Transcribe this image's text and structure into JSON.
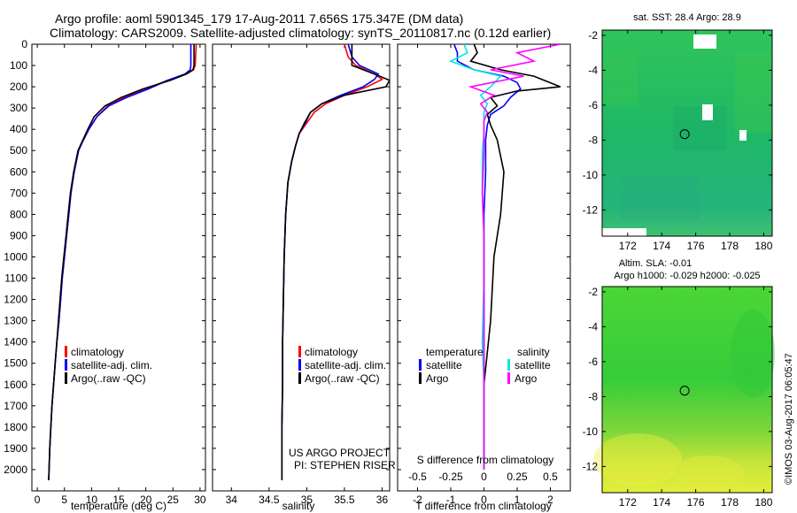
{
  "header": {
    "line1": "Argo profile: aoml 5901345_179 17-Aug-2011 7.656S 175.347E (DM data)",
    "line2": "Climatology: CARS2009. Satellite-adjusted climatology: synTS_20110817.nc (0.12d earlier)"
  },
  "colors": {
    "climatology": "#ff0000",
    "satellite": "#0000ff",
    "argo": "#000000",
    "argo_salinity": "#ff00ff",
    "satellite_salinity": "#00e5e5"
  },
  "chart_data": [
    {
      "type": "line",
      "xlabel": "temperature (deg C)",
      "ylabel": "",
      "xlim": [
        -1,
        31
      ],
      "ylim": [
        2100,
        0
      ],
      "x_ticks": [
        0,
        5,
        10,
        15,
        20,
        25,
        30
      ],
      "y_ticks": [
        0,
        100,
        200,
        300,
        400,
        500,
        600,
        700,
        800,
        900,
        1000,
        1100,
        1200,
        1300,
        1400,
        1500,
        1600,
        1700,
        1800,
        1900,
        2000
      ],
      "legend": [
        "climatology",
        "satellite-adj. clim.",
        "Argo(..raw -QC)"
      ],
      "series": [
        {
          "name": "climatology",
          "color": "#ff0000",
          "x": [
            29.3,
            29.2,
            29.1,
            28.8,
            27.5,
            24,
            20,
            16,
            13,
            11,
            9.5,
            8.5,
            7.6,
            6.8,
            6.2,
            5.8,
            5.4,
            5.0,
            4.6,
            4.3,
            4.0,
            3.6,
            3.3,
            3.0,
            2.7,
            2.5,
            2.3,
            2.1
          ],
          "y": [
            0,
            50,
            100,
            120,
            140,
            170,
            210,
            250,
            290,
            340,
            400,
            450,
            500,
            600,
            700,
            800,
            900,
            1000,
            1100,
            1200,
            1300,
            1400,
            1500,
            1600,
            1700,
            1800,
            1900,
            2050
          ]
        },
        {
          "name": "satellite-adj. clim.",
          "color": "#0000ff",
          "x": [
            28.3,
            28.3,
            28.3,
            28.2,
            27.2,
            24,
            20.5,
            16.5,
            13.2,
            11,
            9.5,
            8.5,
            7.6,
            6.8,
            6.2,
            5.8,
            5.4,
            5.0,
            4.6,
            4.3,
            4.0,
            3.6,
            3.3,
            3.0,
            2.7,
            2.5,
            2.3,
            2.1
          ],
          "y": [
            0,
            50,
            100,
            120,
            140,
            170,
            210,
            250,
            290,
            340,
            400,
            450,
            500,
            600,
            700,
            800,
            900,
            1000,
            1100,
            1200,
            1300,
            1400,
            1500,
            1600,
            1700,
            1800,
            1900,
            2050
          ]
        },
        {
          "name": "Argo(..raw -QC)",
          "color": "#000000",
          "x": [
            28.9,
            28.9,
            28.9,
            28.7,
            27.5,
            24.5,
            19.5,
            15.5,
            12.5,
            10.5,
            9.3,
            8.4,
            7.5,
            6.7,
            6.1,
            5.7,
            5.3,
            4.9,
            4.5,
            4.2,
            3.9,
            3.6,
            3.3,
            3.0,
            2.7,
            2.5,
            2.3,
            2.1
          ],
          "y": [
            0,
            50,
            100,
            120,
            140,
            170,
            210,
            250,
            290,
            340,
            400,
            450,
            500,
            600,
            700,
            800,
            900,
            1000,
            1100,
            1200,
            1300,
            1400,
            1500,
            1600,
            1700,
            1800,
            1900,
            2050
          ]
        }
      ]
    },
    {
      "type": "line",
      "xlabel": "salinity",
      "xlim": [
        33.75,
        36.1
      ],
      "ylim": [
        2100,
        0
      ],
      "x_ticks": [
        34,
        34.5,
        35,
        35.5,
        36
      ],
      "legend": [
        "climatology",
        "satellite-adj. clim.",
        "Argo(..raw -QC)"
      ],
      "annotation": [
        "US ARGO PROJECT",
        "PI: STEPHEN RISER"
      ],
      "series": [
        {
          "name": "climatology",
          "color": "#ff0000",
          "x": [
            35.5,
            35.55,
            35.65,
            35.9,
            36.0,
            35.8,
            35.5,
            35.25,
            35.1,
            35.0,
            34.9,
            34.85,
            34.8,
            34.75,
            34.72,
            34.7,
            34.69,
            34.68,
            34.68,
            34.67,
            34.67,
            34.67
          ],
          "y": [
            0,
            60,
            100,
            140,
            165,
            200,
            240,
            280,
            320,
            370,
            420,
            480,
            550,
            650,
            800,
            1000,
            1200,
            1400,
            1600,
            1800,
            1950,
            2050
          ]
        },
        {
          "name": "satellite-adj. clim.",
          "color": "#0000ff",
          "x": [
            35.55,
            35.6,
            35.7,
            35.95,
            35.9,
            35.75,
            35.45,
            35.2,
            35.05,
            34.98,
            34.9,
            34.85,
            34.8,
            34.75,
            34.72,
            34.7,
            34.69,
            34.68,
            34.68,
            34.67,
            34.67,
            34.67
          ],
          "y": [
            0,
            60,
            100,
            140,
            165,
            200,
            240,
            280,
            320,
            370,
            420,
            480,
            550,
            650,
            800,
            1000,
            1200,
            1400,
            1600,
            1800,
            1950,
            2050
          ]
        },
        {
          "name": "Argo(..raw -QC)",
          "color": "#000000",
          "x": [
            35.6,
            35.6,
            35.6,
            35.9,
            36.1,
            36.05,
            35.5,
            35.2,
            35.05,
            34.97,
            34.9,
            34.85,
            34.8,
            34.75,
            34.72,
            34.7,
            34.69,
            34.68,
            34.68,
            34.67,
            34.67,
            34.67
          ],
          "y": [
            0,
            60,
            100,
            140,
            170,
            200,
            240,
            280,
            320,
            370,
            420,
            480,
            550,
            650,
            800,
            1000,
            1200,
            1400,
            1600,
            1800,
            1950,
            2050
          ]
        }
      ]
    },
    {
      "type": "line",
      "xlabel": "T difference from climatology",
      "top_axis_label": "S difference from climatology",
      "xlim": [
        -2.6,
        2.6
      ],
      "ylim": [
        2100,
        0
      ],
      "x_ticks": [
        -2,
        -1,
        0,
        1,
        2
      ],
      "s_ticks": [
        "-0.5",
        "-0.25",
        "0",
        "0.25",
        "0.5"
      ],
      "legend": {
        "temperature": "temperature",
        "salinity": "salinity",
        "t_satellite": "satellite",
        "t_argo": "Argo",
        "s_satellite": "satellite",
        "s_argo": "Argo"
      },
      "series": [
        {
          "name": "satellite",
          "color": "#0000ff",
          "x": [
            -0.9,
            -0.8,
            -0.8,
            -0.3,
            0.6,
            1.0,
            1.1,
            0.8,
            0.6,
            0.2,
            0.1,
            0.05,
            0.05,
            0.0,
            0.0,
            0.0,
            0.0,
            0.0,
            0.0
          ],
          "y": [
            0,
            40,
            80,
            120,
            150,
            180,
            210,
            250,
            290,
            330,
            380,
            450,
            600,
            800,
            1000,
            1300,
            1600,
            1900,
            2000
          ]
        },
        {
          "name": "Argo",
          "color": "#000000",
          "x": [
            -0.3,
            -0.2,
            -0.4,
            0.5,
            1.5,
            2.3,
            1.0,
            0.2,
            0.4,
            0.1,
            0.2,
            0.4,
            0.6,
            0.5,
            0.3,
            0.2,
            0.0,
            0.0,
            0.0
          ],
          "y": [
            0,
            40,
            80,
            120,
            150,
            200,
            220,
            250,
            290,
            330,
            380,
            450,
            600,
            800,
            1000,
            1300,
            1600,
            1900,
            2000
          ]
        },
        {
          "name": "satellite",
          "color": "#00e5e5",
          "x": [
            -0.6,
            -0.5,
            -1.0,
            -0.3,
            0.5,
            0.2,
            -0.1,
            0.1,
            0.0,
            0.0,
            0.0,
            -0.05,
            -0.05,
            0.0,
            0.0,
            -0.05,
            0.0,
            0.0,
            0.0
          ],
          "y": [
            0,
            40,
            80,
            120,
            150,
            200,
            240,
            280,
            320,
            360,
            420,
            500,
            700,
            900,
            1100,
            1400,
            1600,
            1900,
            2000
          ]
        },
        {
          "name": "Argo",
          "color": "#ff00ff",
          "x": [
            2.3,
            1.0,
            1.5,
            0.2,
            1.2,
            -0.4,
            0.3,
            -0.1,
            0.1,
            0.0,
            0.0,
            0.0,
            -0.05,
            0.0,
            0.0,
            0.0,
            0.0,
            0.0,
            0.0
          ],
          "y": [
            0,
            40,
            80,
            120,
            150,
            200,
            240,
            280,
            320,
            360,
            420,
            500,
            700,
            900,
            1100,
            1400,
            1600,
            1900,
            2000
          ]
        }
      ]
    },
    {
      "type": "heatmap",
      "title": "sat. SST: 28.4  Argo: 28.9",
      "xlim": [
        170.5,
        180.5
      ],
      "ylim": [
        -13.5,
        -1.7
      ],
      "x_ticks": [
        172,
        174,
        176,
        178,
        180
      ],
      "y_ticks": [
        -2,
        -4,
        -6,
        -8,
        -10,
        -12
      ],
      "x_tick_labels": [
        "172",
        "174",
        "176",
        "178",
        "180"
      ],
      "y_tick_labels": [
        "-2",
        "-4",
        "-6",
        "-8",
        "-10",
        "-12"
      ],
      "marker": {
        "x": 175.35,
        "y": -7.66
      }
    },
    {
      "type": "heatmap",
      "title": "Altim. SLA: -0.01",
      "subtitle": "Argo h1000: -0.029  h2000: -0.025",
      "xlim": [
        170.5,
        180.5
      ],
      "ylim": [
        -13.5,
        -1.7
      ],
      "x_ticks": [
        172,
        174,
        176,
        178,
        180
      ],
      "y_ticks": [
        -2,
        -4,
        -6,
        -8,
        -10,
        -12
      ],
      "x_tick_labels": [
        "172",
        "174",
        "176",
        "178",
        "180"
      ],
      "y_tick_labels": [
        "-2",
        "-4",
        "-6",
        "-8",
        "-10",
        "-12"
      ],
      "marker": {
        "x": 175.35,
        "y": -7.66
      }
    }
  ],
  "watermark": "©IMOS 03-Aug-2017 06:05:47"
}
